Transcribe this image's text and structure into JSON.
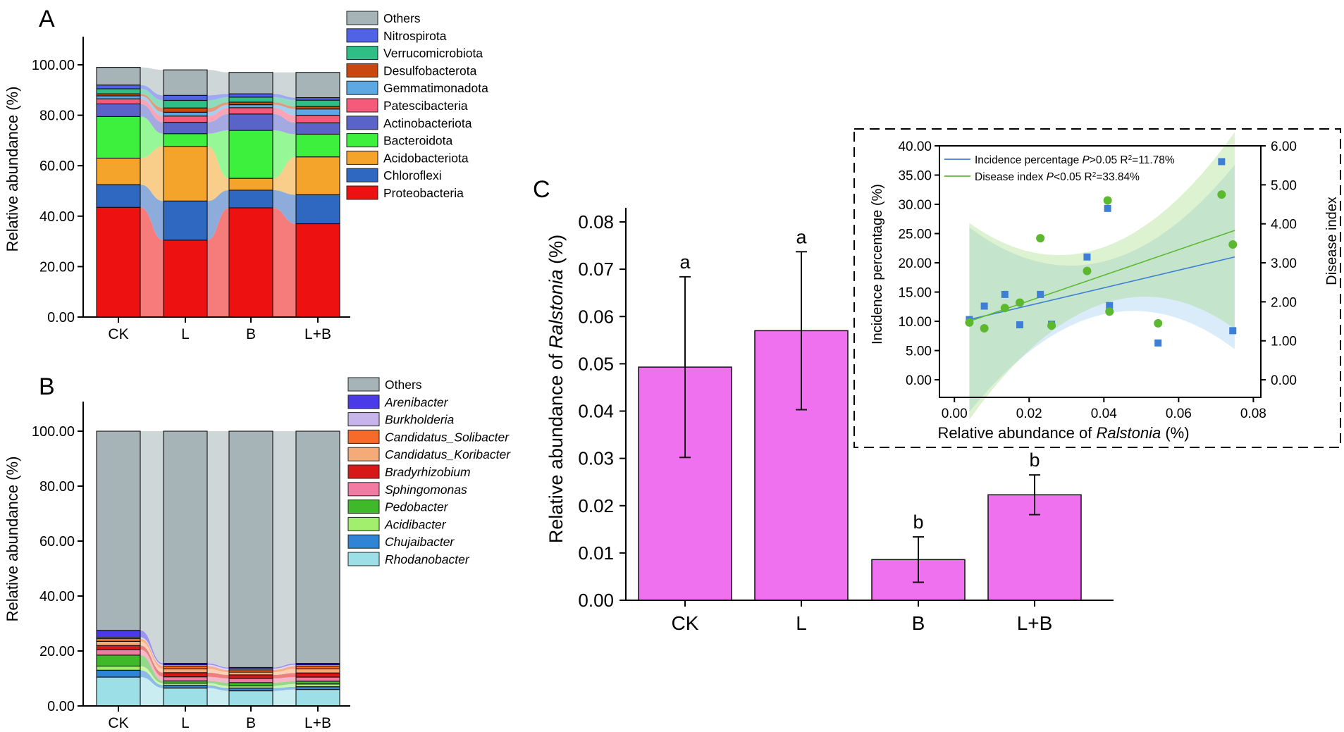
{
  "chart_data": [
    {
      "panel_label": "A",
      "type": "stacked-bar",
      "categories": [
        "CK",
        "L",
        "B",
        "L+B"
      ],
      "ylabel": "Relative abundance (%)",
      "ylim": [
        0,
        100
      ],
      "yticks": [
        "0.00",
        "20.00",
        "40.00",
        "60.00",
        "80.00",
        "100.00"
      ],
      "legend_position": "right",
      "series": [
        {
          "name": "Proteobacteria",
          "color": "#ee1111",
          "values": [
            43.5,
            30.5,
            43.3,
            37.0
          ]
        },
        {
          "name": "Chloroflexi",
          "color": "#2f68c0",
          "values": [
            9.0,
            15.5,
            7.0,
            11.5
          ]
        },
        {
          "name": "Acidobacteriota",
          "color": "#f4a42a",
          "values": [
            10.5,
            21.7,
            4.7,
            15.0
          ]
        },
        {
          "name": "Bacteroidota",
          "color": "#3ef03e",
          "values": [
            16.5,
            5.0,
            19.0,
            9.0
          ]
        },
        {
          "name": "Actinobacteriota",
          "color": "#5a64c8",
          "values": [
            5.0,
            4.5,
            6.5,
            4.5
          ]
        },
        {
          "name": "Patescibacteria",
          "color": "#f55a7a",
          "values": [
            2.0,
            2.5,
            2.5,
            3.0
          ]
        },
        {
          "name": "Gemmatimonadota",
          "color": "#5ba8e4",
          "values": [
            1.2,
            1.5,
            1.2,
            2.5
          ]
        },
        {
          "name": "Desulfobacterota",
          "color": "#c84810",
          "values": [
            0.8,
            1.7,
            1.0,
            1.0
          ]
        },
        {
          "name": "Verrucomicrobiota",
          "color": "#2fbf86",
          "values": [
            2.0,
            3.0,
            2.0,
            2.5
          ]
        },
        {
          "name": "Nitrospirota",
          "color": "#5063e6",
          "values": [
            1.5,
            2.0,
            1.3,
            1.0
          ]
        },
        {
          "name": "Others",
          "color": "#a6b4b7",
          "values": [
            7.0,
            10.1,
            8.5,
            10.0
          ]
        }
      ]
    },
    {
      "panel_label": "B",
      "type": "stacked-bar",
      "categories": [
        "CK",
        "L",
        "B",
        "L+B"
      ],
      "ylabel": "Relative abundance (%)",
      "ylim": [
        0,
        100
      ],
      "yticks": [
        "0.00",
        "20.00",
        "40.00",
        "60.00",
        "80.00",
        "100.00"
      ],
      "legend_position": "right",
      "legend_italic": true,
      "series": [
        {
          "name": "Rhodanobacter",
          "color": "#9cdfe6",
          "values": [
            10.5,
            6.5,
            5.5,
            6.0
          ]
        },
        {
          "name": "Chujaibacter",
          "color": "#2f84d6",
          "values": [
            2.5,
            1.0,
            1.0,
            1.0
          ]
        },
        {
          "name": "Acidibacter",
          "color": "#a2ef6e",
          "values": [
            1.5,
            0.8,
            0.8,
            1.0
          ]
        },
        {
          "name": "Pedobacter",
          "color": "#3fb82a",
          "values": [
            4.0,
            0.8,
            1.2,
            1.0
          ]
        },
        {
          "name": "Sphingomonas",
          "color": "#f27ba3",
          "values": [
            2.0,
            1.5,
            1.5,
            1.5
          ]
        },
        {
          "name": "Bradyrhizobium",
          "color": "#d81818",
          "values": [
            1.5,
            1.5,
            1.3,
            1.5
          ]
        },
        {
          "name": "Candidatus_Koribacter",
          "color": "#f5ab78",
          "values": [
            1.5,
            1.4,
            1.0,
            1.5
          ]
        },
        {
          "name": "Candidatus_Solibacter",
          "color": "#f66a2a",
          "values": [
            1.0,
            1.0,
            0.8,
            1.0
          ]
        },
        {
          "name": "Burkholderia",
          "color": "#c7b4ea",
          "values": [
            0.5,
            0.5,
            0.5,
            0.5
          ]
        },
        {
          "name": "Arenibacter",
          "color": "#4a3ae8",
          "values": [
            2.5,
            0.5,
            0.4,
            0.5
          ]
        },
        {
          "name": "Others",
          "color": "#a6b4b7",
          "values": [
            72.5,
            84.5,
            86.0,
            84.5
          ]
        }
      ]
    },
    {
      "panel_label": "C",
      "type": "bar",
      "categories": [
        "CK",
        "L",
        "B",
        "L+B"
      ],
      "values": [
        0.0493,
        0.057,
        0.0086,
        0.0223
      ],
      "errors": [
        0.0191,
        0.0167,
        0.0048,
        0.0042
      ],
      "significance": [
        "a",
        "a",
        "b",
        "b"
      ],
      "bar_color": "#f071f0",
      "ylabel_prefix": "Relative abundance of ",
      "ylabel_italic": "Ralstonia",
      "ylabel_suffix": " (%)",
      "ylim": [
        0,
        0.08
      ],
      "yticks": [
        "0.00",
        "0.01",
        "0.02",
        "0.03",
        "0.04",
        "0.05",
        "0.06",
        "0.07",
        "0.08"
      ]
    },
    {
      "panel_label": "C-inset",
      "type": "scatter",
      "xlabel_prefix": "Relative abundance of ",
      "xlabel_italic": "Ralstonia",
      "xlabel_suffix": " (%)",
      "ylabel_left": "Incidence percentage (%)",
      "ylabel_right": "Disease index",
      "xlim": [
        -0.004,
        0.082
      ],
      "ylim_left": [
        -3,
        40
      ],
      "ylim_right": [
        -0.45,
        6.0
      ],
      "xticks": [
        "0.00",
        "0.02",
        "0.04",
        "0.06",
        "0.08"
      ],
      "yticks_left": [
        "0.00",
        "5.00",
        "10.00",
        "15.00",
        "20.00",
        "25.00",
        "30.00",
        "35.00",
        "40.00"
      ],
      "yticks_right": [
        "0.00",
        "1.00",
        "2.00",
        "3.00",
        "4.00",
        "5.00",
        "6.00"
      ],
      "series": [
        {
          "name": "Incidence percentage",
          "legend_label": "Incidence percentage",
          "legend_stat": ">0.05 R",
          "legend_r2": "=11.78%",
          "marker": "square",
          "color": "#3d7fd6",
          "axis": "left",
          "fit": {
            "x0": 0.004,
            "y0": 10.3,
            "x1": 0.075,
            "y1": 21.0
          },
          "x": [
            0.004,
            0.008,
            0.0135,
            0.0175,
            0.023,
            0.026,
            0.0355,
            0.041,
            0.0415,
            0.0545,
            0.0715,
            0.0745
          ],
          "y": [
            10.3,
            12.6,
            14.6,
            9.4,
            14.6,
            9.5,
            21.0,
            29.3,
            12.7,
            6.3,
            37.3,
            8.4
          ]
        },
        {
          "name": "Disease index",
          "legend_label": "Disease index",
          "legend_stat": "<0.05 R",
          "legend_r2": "=33.84%",
          "marker": "circle",
          "color": "#5cb82e",
          "axis": "right",
          "fit": {
            "x0": 0.004,
            "y0": 1.5,
            "x1": 0.075,
            "y1": 3.83
          },
          "x": [
            0.004,
            0.008,
            0.0135,
            0.0175,
            0.023,
            0.026,
            0.0355,
            0.041,
            0.0415,
            0.0545,
            0.0715,
            0.0745
          ],
          "y": [
            1.47,
            1.32,
            1.84,
            1.98,
            3.63,
            1.39,
            2.79,
            4.6,
            1.75,
            1.45,
            4.75,
            3.47
          ]
        }
      ]
    }
  ]
}
